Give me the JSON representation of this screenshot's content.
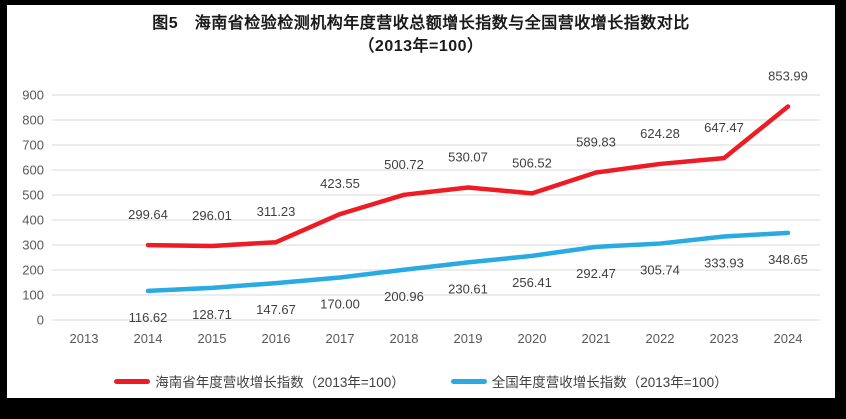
{
  "title": {
    "line1": "图5　海南省检验检测机构年度营收总额增长指数与全国营收增长指数对比",
    "line2": "（2013年=100）"
  },
  "colors": {
    "hainan_line": "#ED1C24",
    "national_line": "#29ABE2",
    "gridline": "#D9D9D9",
    "tick_text": "#595959",
    "data_label_text": "#404040",
    "background": "#FFFFFF",
    "frame": "#000000"
  },
  "chart_data": {
    "type": "line",
    "title": "图5　海南省检验检测机构年度营收总额增长指数与全国营收增长指数对比（2013年=100）",
    "categories": [
      "2013",
      "2014",
      "2015",
      "2016",
      "2017",
      "2018",
      "2019",
      "2020",
      "2021",
      "2022",
      "2023",
      "2024"
    ],
    "series": [
      {
        "name": "海南省年度营收增长指数（2013年=100）",
        "color": "#ED1C24",
        "values": [
          null,
          299.64,
          296.01,
          311.23,
          423.55,
          500.72,
          530.07,
          506.52,
          589.83,
          624.28,
          647.47,
          853.99
        ],
        "labels": [
          null,
          "299.64",
          "296.01",
          "311.23",
          "423.55",
          "500.72",
          "530.07",
          "506.52",
          "589.83",
          "624.28",
          "647.47",
          "853.99"
        ],
        "label_side": "above"
      },
      {
        "name": "全国年度营收增长指数（2013年=100）",
        "color": "#29ABE2",
        "values": [
          null,
          116.62,
          128.71,
          147.67,
          170.0,
          200.96,
          230.61,
          256.41,
          292.47,
          305.74,
          333.93,
          348.65
        ],
        "labels": [
          null,
          "116.62",
          "128.71",
          "147.67",
          "170.00",
          "200.96",
          "230.61",
          "256.41",
          "292.47",
          "305.74",
          "333.93",
          "348.65"
        ],
        "label_side": "below"
      }
    ],
    "xlabel": "",
    "ylabel": "",
    "ylim": [
      0,
      900
    ],
    "ytick_step": 100,
    "yticks": [
      "0",
      "100",
      "200",
      "300",
      "400",
      "500",
      "600",
      "700",
      "800",
      "900"
    ],
    "grid": true,
    "legend_position": "bottom"
  }
}
